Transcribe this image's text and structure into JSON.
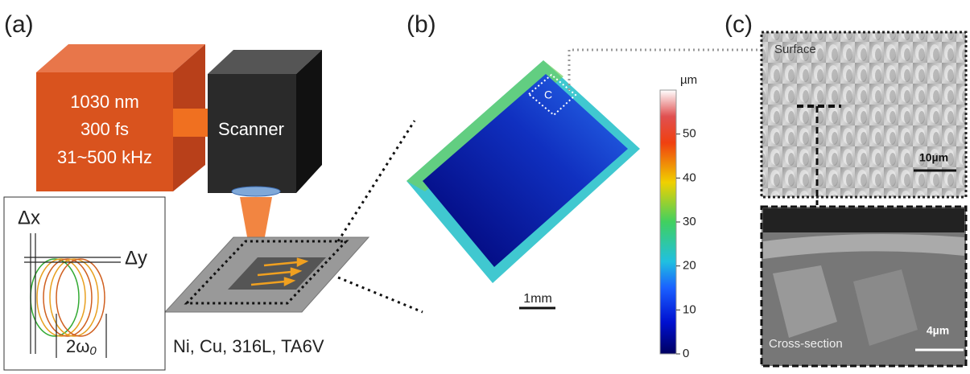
{
  "panel_a": {
    "label": "(a)",
    "laser": [
      "1030 nm",
      "300 fs",
      "31~500 kHz"
    ],
    "scanner": "Scanner",
    "dx": "Δx",
    "dy": "Δy",
    "spot": "2ω",
    "spot_sub": "0",
    "materials": "Ni, Cu, 316L, TA6V"
  },
  "panel_b": {
    "label": "(b)",
    "zone": "C",
    "scale": "1mm",
    "colorbar": {
      "unit": "µm",
      "lim": [
        0,
        60
      ],
      "ticks": [
        0,
        10,
        20,
        30,
        40,
        50
      ]
    }
  },
  "panel_c": {
    "label": "(c)",
    "surface": "Surface",
    "surface_scale": "10µm",
    "section": "Cross-section",
    "section_scale": "4µm"
  }
}
